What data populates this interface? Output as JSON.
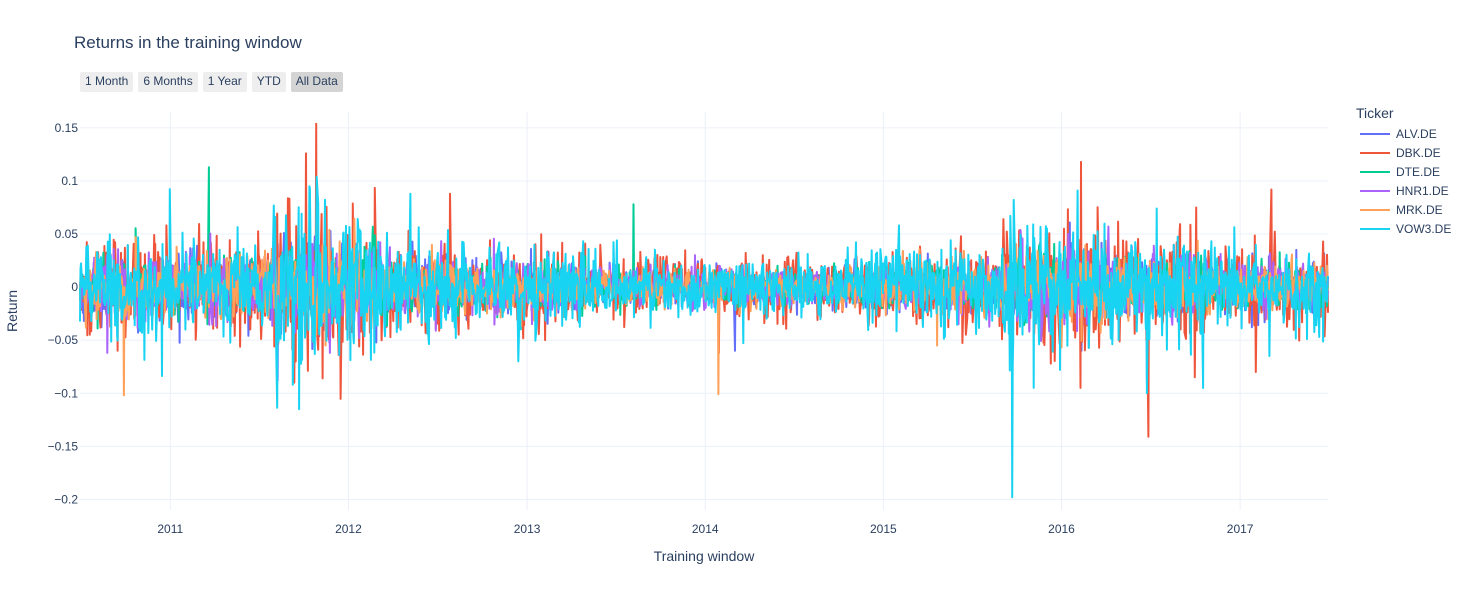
{
  "chart_data": {
    "type": "line",
    "title": "Returns in the training window",
    "xlabel": "Training window",
    "ylabel": "Return",
    "xlim": [
      "2010-06-30",
      "2017-06-30"
    ],
    "ylim": [
      -0.21,
      0.165
    ],
    "yticks": [
      0.15,
      0.1,
      0.05,
      0,
      -0.05,
      -0.1,
      -0.15,
      -0.2
    ],
    "ytick_labels": [
      "0.15",
      "0.1",
      "0.05",
      "0",
      "−0.05",
      "−0.1",
      "−0.15",
      "−0.2"
    ],
    "xticks": [
      "2011-01-01",
      "2012-01-01",
      "2013-01-01",
      "2014-01-01",
      "2015-01-01",
      "2016-01-01",
      "2017-01-01"
    ],
    "xtick_labels": [
      "2011",
      "2012",
      "2013",
      "2014",
      "2015",
      "2016",
      "2017"
    ],
    "grid": true,
    "legend_position": "right",
    "legend_title": "Ticker",
    "series": [
      {
        "name": "ALV.DE",
        "color": "#636efa",
        "scale": 0.012,
        "spikes": [
          [
            "2011-08-08",
            -0.07
          ],
          [
            "2011-10-27",
            0.08
          ],
          [
            "2014-03-03",
            -0.06
          ],
          [
            "2016-06-24",
            -0.09
          ],
          [
            "2016-02-11",
            -0.06
          ]
        ]
      },
      {
        "name": "DBK.DE",
        "color": "#ef553b",
        "scale": 0.018,
        "spikes": [
          [
            "2011-10-27",
            0.154
          ],
          [
            "2011-10-06",
            0.126
          ],
          [
            "2012-07-27",
            0.088
          ],
          [
            "2016-06-27",
            -0.141
          ],
          [
            "2016-02-10",
            0.118
          ],
          [
            "2016-02-09",
            -0.095
          ],
          [
            "2017-03-06",
            0.092
          ],
          [
            "2017-02-02",
            -0.08
          ],
          [
            "2011-09-12",
            -0.09
          ],
          [
            "2011-11-09",
            -0.086
          ],
          [
            "2014-01-29",
            -0.062
          ],
          [
            "2016-09-30",
            -0.085
          ],
          [
            "2016-10-03",
            0.075
          ]
        ]
      },
      {
        "name": "DTE.DE",
        "color": "#00cc96",
        "scale": 0.01,
        "spikes": [
          [
            "2011-03-21",
            0.113
          ],
          [
            "2013-08-07",
            0.078
          ],
          [
            "2011-03-18",
            -0.035
          ]
        ]
      },
      {
        "name": "HNR1.DE",
        "color": "#ab63fa",
        "scale": 0.012,
        "spikes": [
          [
            "2010-08-25",
            -0.062
          ],
          [
            "2011-08-09",
            -0.088
          ],
          [
            "2011-09-22",
            -0.076
          ]
        ]
      },
      {
        "name": "MRK.DE",
        "color": "#ffa15a",
        "scale": 0.011,
        "spikes": [
          [
            "2010-09-28",
            -0.102
          ],
          [
            "2014-01-28",
            -0.101
          ],
          [
            "2015-04-21",
            -0.055
          ],
          [
            "2011-11-15",
            -0.055
          ]
        ]
      },
      {
        "name": "VOW3.DE",
        "color": "#19d3f3",
        "scale": 0.019,
        "spikes": [
          [
            "2015-09-22",
            -0.198
          ],
          [
            "2011-09-22",
            -0.115
          ],
          [
            "2011-10-28",
            0.104
          ],
          [
            "2011-10-13",
            0.095
          ],
          [
            "2015-09-23",
            -0.075
          ],
          [
            "2015-11-05",
            -0.095
          ],
          [
            "2016-06-24",
            -0.1
          ],
          [
            "2012-05-07",
            0.088
          ],
          [
            "2016-02-03",
            0.091
          ],
          [
            "2012-12-14",
            -0.07
          ]
        ]
      }
    ]
  },
  "range_buttons": {
    "b1": "1 Month",
    "b2": "6 Months",
    "b3": "1 Year",
    "b4": "YTD",
    "b5": "All Data"
  },
  "colors": {
    "grid": "#ebf0f8",
    "zeroline": "#dfe5ef",
    "active_button": "#d4d4d4",
    "button": "#eeeeee"
  }
}
